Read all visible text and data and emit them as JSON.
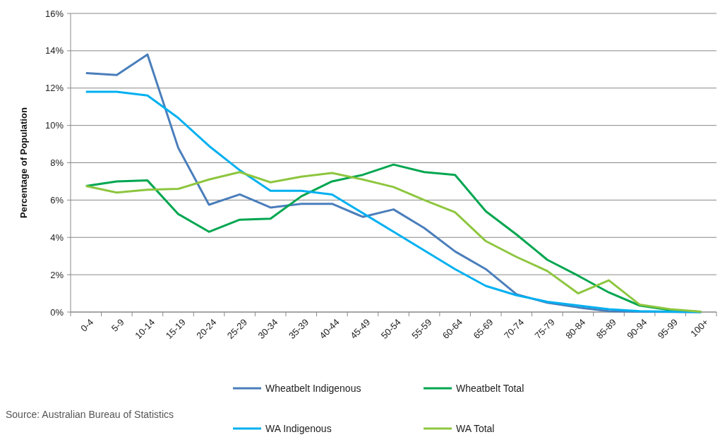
{
  "chart_data": {
    "type": "line",
    "ylabel": "Percentage of Population",
    "categories": [
      "0-4",
      "5-9",
      "10-14",
      "15-19",
      "20-24",
      "25-29",
      "30-34",
      "35-39",
      "40-44",
      "45-49",
      "50-54",
      "55-59",
      "60-64",
      "65-69",
      "70-74",
      "75-79",
      "80-84",
      "85-89",
      "90-94",
      "95-99",
      "100+"
    ],
    "series": [
      {
        "name": "Wheatbelt Indigenous",
        "color": "#4a7ebb",
        "values": [
          12.8,
          12.7,
          13.8,
          8.8,
          5.75,
          6.3,
          5.6,
          5.8,
          5.8,
          5.1,
          5.5,
          4.5,
          3.25,
          2.3,
          0.95,
          0.5,
          0.25,
          0.05,
          0.02,
          0.01,
          0
        ]
      },
      {
        "name": "Wheatbelt Total",
        "color": "#00a650",
        "values": [
          6.75,
          7.0,
          7.05,
          5.25,
          4.3,
          4.95,
          5.0,
          6.2,
          7.0,
          7.35,
          7.9,
          7.5,
          7.35,
          5.4,
          4.15,
          2.8,
          1.95,
          1.05,
          0.35,
          0.1,
          0.01
        ]
      },
      {
        "name": "WA Indigenous",
        "color": "#00b0f0",
        "values": [
          11.8,
          11.8,
          11.6,
          10.4,
          8.9,
          7.6,
          6.5,
          6.5,
          6.3,
          5.3,
          4.3,
          3.3,
          2.3,
          1.4,
          0.9,
          0.55,
          0.35,
          0.15,
          0.05,
          0.02,
          0
        ]
      },
      {
        "name": "WA Total",
        "color": "#8dc63f",
        "values": [
          6.75,
          6.4,
          6.55,
          6.6,
          7.1,
          7.5,
          6.95,
          7.25,
          7.45,
          7.1,
          6.7,
          6.0,
          5.35,
          3.8,
          2.95,
          2.2,
          1.0,
          1.7,
          0.4,
          0.15,
          0.02
        ]
      }
    ],
    "ylim": [
      0,
      16
    ],
    "yticks": [
      {
        "value": 0,
        "label": "0%"
      },
      {
        "value": 2,
        "label": "2%"
      },
      {
        "value": 4,
        "label": "4%"
      },
      {
        "value": 6,
        "label": "6%"
      },
      {
        "value": 8,
        "label": "8%"
      },
      {
        "value": 10,
        "label": "10%"
      },
      {
        "value": 12,
        "label": "12%"
      },
      {
        "value": 14,
        "label": "14%"
      },
      {
        "value": 16,
        "label": "16%"
      }
    ],
    "grid": "y",
    "legend": "bottom",
    "marker": "none",
    "line_style": "solid",
    "annotations": [
      "Source: Australian Bureau of Statistics"
    ]
  }
}
